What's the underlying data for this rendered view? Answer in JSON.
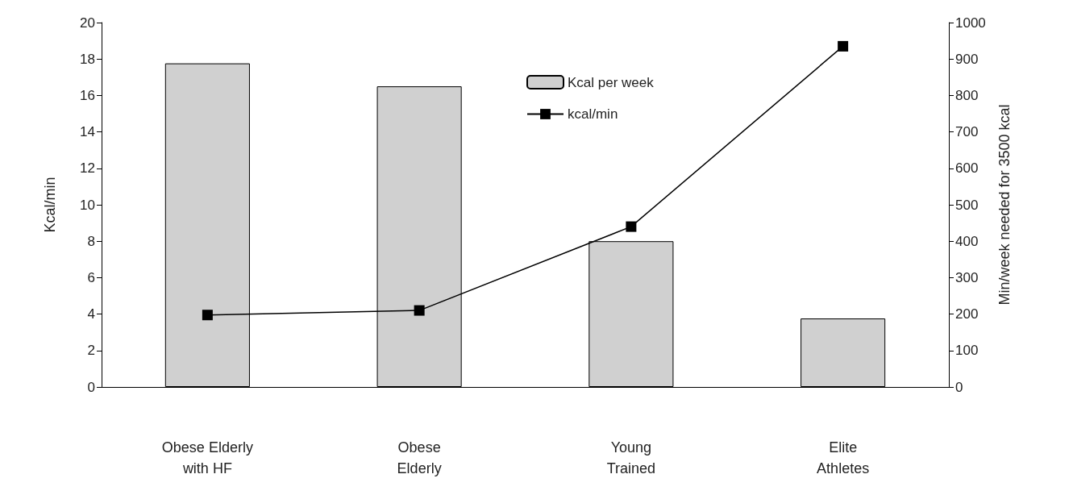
{
  "chart_data": {
    "type": "bar",
    "categories": [
      "Obese Elderly\nwith HF",
      "Obese\nElderly",
      "Young\nTrained",
      "Elite\nAthletes"
    ],
    "series": [
      {
        "name": "Kcal per week",
        "axis": "y2",
        "color": "#d0d0d0",
        "values": [
          888,
          825,
          400,
          188
        ]
      },
      {
        "name": "kcal/min",
        "type": "line",
        "color": "#000000",
        "marker": "square",
        "values": [
          3.95,
          4.2,
          8.8,
          18.7
        ]
      }
    ],
    "ylabel": "Kcal/min",
    "y2label": "Min/week needed for 3500 kcal",
    "ylim": [
      0,
      20
    ],
    "yticks": [
      0,
      2,
      4,
      6,
      8,
      10,
      12,
      14,
      16,
      18,
      20
    ],
    "y2lim": [
      0,
      1000
    ],
    "y2ticks": [
      0,
      100,
      200,
      300,
      400,
      500,
      600,
      700,
      800,
      900,
      1000
    ],
    "grid": false,
    "legend": "top"
  }
}
